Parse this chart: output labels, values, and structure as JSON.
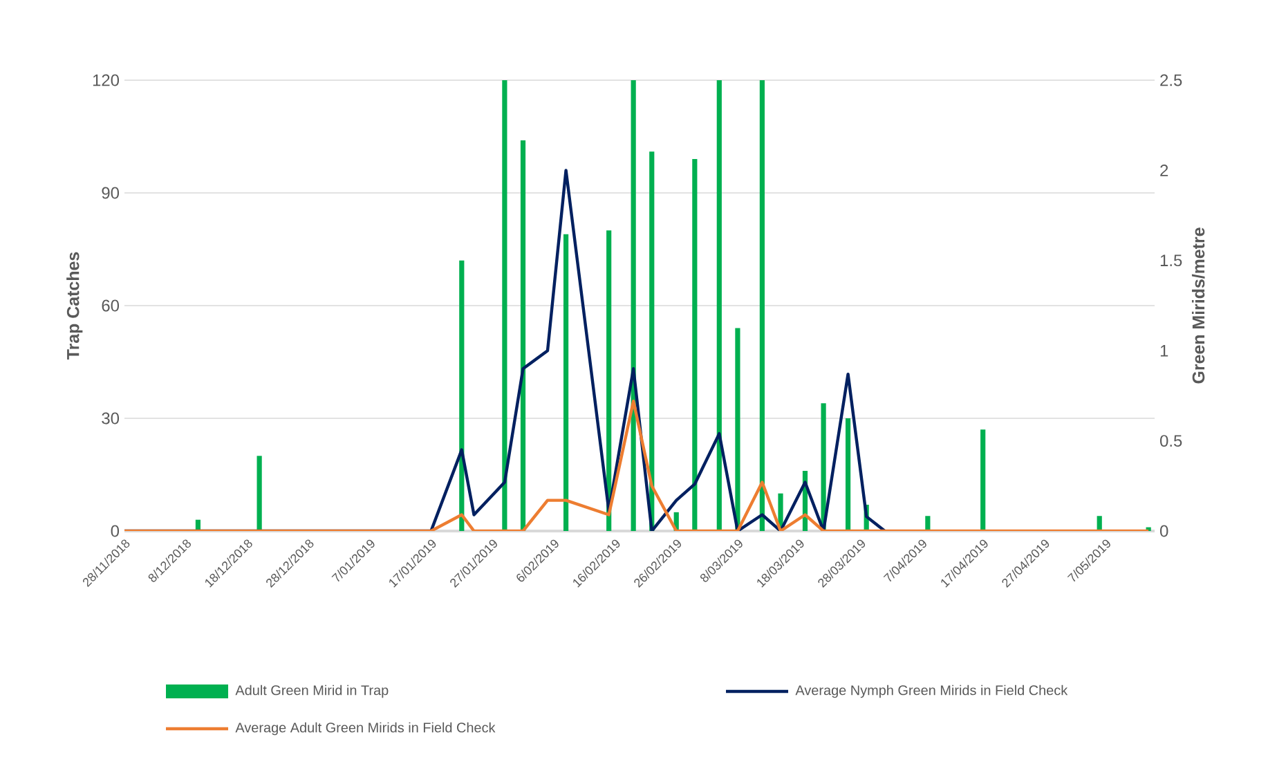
{
  "chart_data": {
    "type": "bar",
    "ylabel": "Trap Catches",
    "y2label": "Green Mirids/metre",
    "xlim": [
      "2018-11-28",
      "2019-05-15"
    ],
    "xticks": [
      {
        "value": "2018-11-28",
        "label": "28/11/2018"
      },
      {
        "value": "2018-12-08",
        "label": "8/12/2018"
      },
      {
        "value": "2018-12-18",
        "label": "18/12/2018"
      },
      {
        "value": "2018-12-28",
        "label": "28/12/2018"
      },
      {
        "value": "2019-01-07",
        "label": "7/01/2019"
      },
      {
        "value": "2019-01-17",
        "label": "17/01/2019"
      },
      {
        "value": "2019-01-27",
        "label": "27/01/2019"
      },
      {
        "value": "2019-02-06",
        "label": "6/02/2019"
      },
      {
        "value": "2019-02-16",
        "label": "16/02/2019"
      },
      {
        "value": "2019-02-26",
        "label": "26/02/2019"
      },
      {
        "value": "2019-03-08",
        "label": "8/03/2019"
      },
      {
        "value": "2019-03-18",
        "label": "18/03/2019"
      },
      {
        "value": "2019-03-28",
        "label": "28/03/2019"
      },
      {
        "value": "2019-04-07",
        "label": "7/04/2019"
      },
      {
        "value": "2019-04-17",
        "label": "17/04/2019"
      },
      {
        "value": "2019-04-27",
        "label": "27/04/2019"
      },
      {
        "value": "2019-05-07",
        "label": "7/05/2019"
      }
    ],
    "ylim": [
      0,
      120
    ],
    "yticks": [
      0,
      30,
      60,
      90,
      120
    ],
    "y2lim": [
      0,
      2.5
    ],
    "y2ticks": [
      0,
      0.5,
      1,
      1.5,
      2,
      2.5
    ],
    "grid": "y",
    "legend": "bottom",
    "marker": "none",
    "line_style": "solid",
    "series": [
      {
        "name": "Adult Green Mirid in Trap",
        "color": "#00b050",
        "x": [
          "2018-12-10",
          "2018-12-20",
          "2019-01-22",
          "2019-01-29",
          "2019-02-01",
          "2019-02-08",
          "2019-02-15",
          "2019-02-19",
          "2019-02-22",
          "2019-02-26",
          "2019-03-01",
          "2019-03-05",
          "2019-03-08",
          "2019-03-12",
          "2019-03-15",
          "2019-03-19",
          "2019-03-22",
          "2019-03-26",
          "2019-03-29",
          "2019-04-08",
          "2019-04-17",
          "2019-05-06",
          "2019-05-14"
        ],
        "values": [
          3,
          20,
          72,
          120,
          104,
          79,
          80,
          120,
          101,
          5,
          99,
          120,
          54,
          120,
          10,
          16,
          34,
          30,
          7,
          4,
          27,
          4,
          1
        ]
      },
      {
        "name": "Average Nymph Green Mirids in Field Check",
        "type": "line",
        "axis": "y2",
        "color": "#002060",
        "x": [
          "2018-11-28",
          "2019-01-17",
          "2019-01-22",
          "2019-01-24",
          "2019-01-29",
          "2019-02-01",
          "2019-02-05",
          "2019-02-08",
          "2019-02-15",
          "2019-02-19",
          "2019-02-22",
          "2019-02-26",
          "2019-03-01",
          "2019-03-05",
          "2019-03-08",
          "2019-03-12",
          "2019-03-15",
          "2019-03-19",
          "2019-03-22",
          "2019-03-26",
          "2019-03-29",
          "2019-04-01"
        ],
        "values": [
          0,
          0,
          0.45,
          0.09,
          0.27,
          0.9,
          1.0,
          2.0,
          0.11,
          0.9,
          0,
          0.17,
          0.26,
          0.54,
          0,
          0.09,
          0,
          0.27,
          0,
          0.87,
          0.08,
          0
        ]
      },
      {
        "name": "Average Adult Green Mirids in Field Check",
        "type": "line",
        "axis": "y2",
        "color": "#ed7d31",
        "x": [
          "2018-11-28",
          "2019-01-17",
          "2019-01-22",
          "2019-01-24",
          "2019-02-01",
          "2019-02-05",
          "2019-02-08",
          "2019-02-15",
          "2019-02-19",
          "2019-02-22",
          "2019-02-26",
          "2019-03-08",
          "2019-03-12",
          "2019-03-15",
          "2019-03-19",
          "2019-03-22",
          "2019-05-14"
        ],
        "values": [
          0,
          0,
          0.09,
          0,
          0,
          0.17,
          0.17,
          0.09,
          0.72,
          0.25,
          0,
          0,
          0.27,
          0,
          0.09,
          0,
          0
        ]
      }
    ]
  }
}
